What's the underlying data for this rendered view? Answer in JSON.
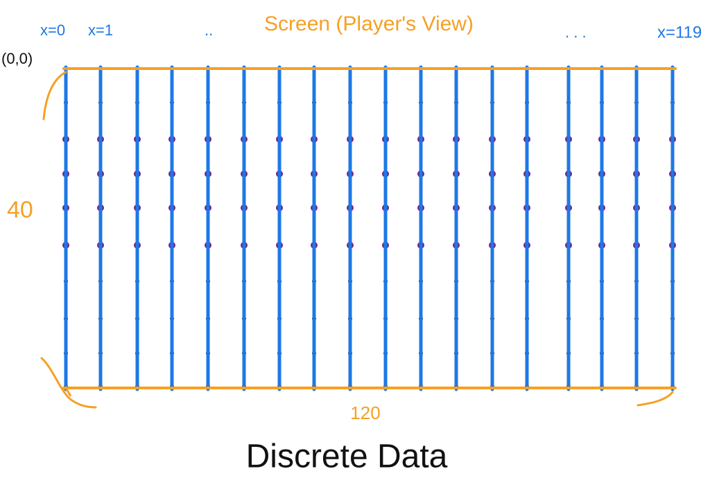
{
  "title": "Screen (Player's View)",
  "column_labels": {
    "first": "x=0",
    "second": "x=1",
    "ellipsis_left": "..",
    "ellipsis_right": ". . .",
    "last": "x=119"
  },
  "origin_label": "(0,0)",
  "height_label": "40",
  "width_label": "120",
  "caption": "Discrete Data"
}
